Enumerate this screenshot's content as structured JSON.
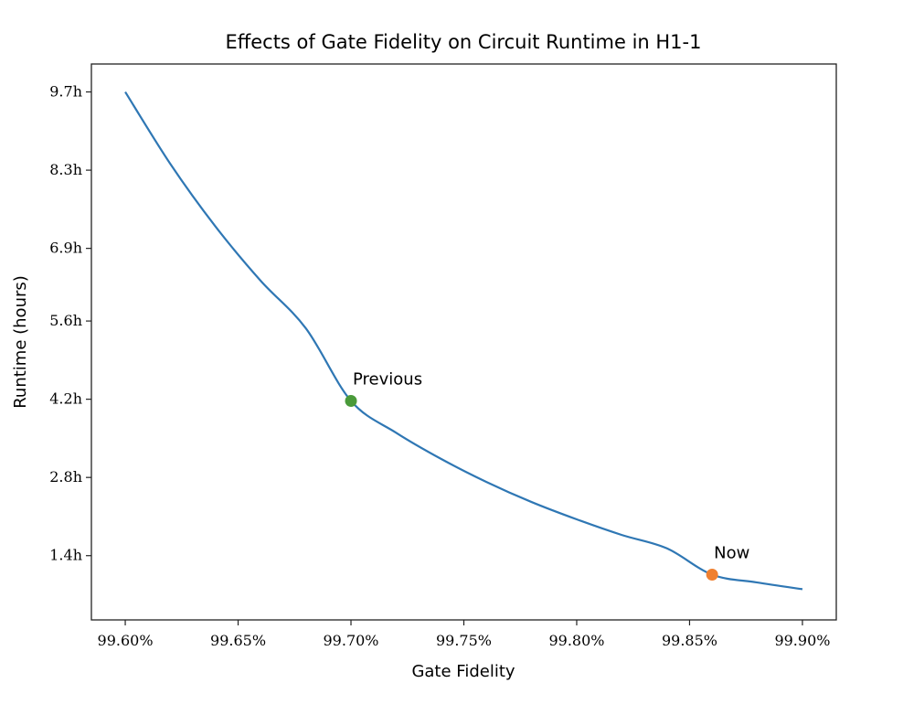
{
  "chart_data": {
    "type": "line",
    "title": "Effects of Gate Fidelity on Circuit Runtime in H1-1",
    "xlabel": "Gate Fidelity",
    "ylabel": "Runtime (hours)",
    "xlim": [
      99.585,
      99.915
    ],
    "ylim": [
      0.25,
      10.2
    ],
    "x_ticks": [
      {
        "value": 99.6,
        "label": "99.60%"
      },
      {
        "value": 99.65,
        "label": "99.65%"
      },
      {
        "value": 99.7,
        "label": "99.70%"
      },
      {
        "value": 99.75,
        "label": "99.75%"
      },
      {
        "value": 99.8,
        "label": "99.80%"
      },
      {
        "value": 99.85,
        "label": "99.85%"
      },
      {
        "value": 99.9,
        "label": "99.90%"
      }
    ],
    "y_ticks": [
      {
        "value": 1.4,
        "label": "1.4h"
      },
      {
        "value": 2.8,
        "label": "2.8h"
      },
      {
        "value": 4.2,
        "label": "4.2h"
      },
      {
        "value": 5.6,
        "label": "5.6h"
      },
      {
        "value": 6.9,
        "label": "6.9h"
      },
      {
        "value": 8.3,
        "label": "8.3h"
      },
      {
        "value": 9.7,
        "label": "9.7h"
      }
    ],
    "grid": false,
    "series": [
      {
        "color": "#2f77b4",
        "x": [
          99.6,
          99.62,
          99.64,
          99.66,
          99.68,
          99.7,
          99.72,
          99.74,
          99.76,
          99.78,
          99.8,
          99.82,
          99.84,
          99.86,
          99.88,
          99.9
        ],
        "y": [
          9.7,
          8.41,
          7.29,
          6.32,
          5.47,
          4.17,
          3.6,
          3.13,
          2.72,
          2.36,
          2.05,
          1.77,
          1.53,
          1.06,
          0.92,
          0.8
        ]
      }
    ],
    "annotations": [
      {
        "label": "Previous",
        "x": 99.7,
        "y": 4.17,
        "color": "#4a9a3a"
      },
      {
        "label": "Now",
        "x": 99.86,
        "y": 1.06,
        "color": "#f08030"
      }
    ]
  }
}
